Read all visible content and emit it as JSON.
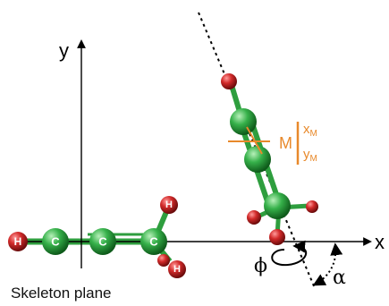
{
  "axes": {
    "x_label": "x",
    "y_label": "y"
  },
  "atoms": {
    "carbon": "C",
    "hydrogen": "H"
  },
  "molecule_labels": {
    "center": "M",
    "x_sub_base": "x",
    "x_sub_index": "M",
    "y_sub_base": "y",
    "y_sub_index": "M"
  },
  "angles": {
    "phi": "ϕ",
    "alpha": "α"
  },
  "caption": "Skeleton plane",
  "colors": {
    "carbon": "#2e9e3e",
    "hydrogen": "#b51d1d",
    "oxygen": "#c21e1e",
    "bond": "#2e9e3e",
    "orange": "#e8892b",
    "axis": "#000000"
  }
}
